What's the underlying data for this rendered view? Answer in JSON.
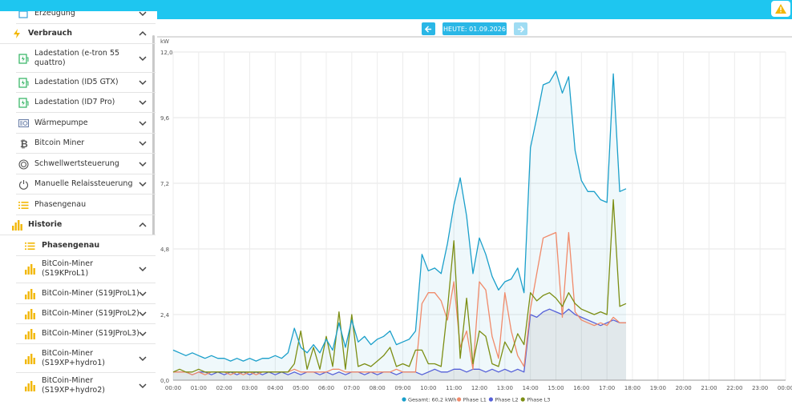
{
  "nav": {
    "date_label": "HEUTE: 01.09.2026",
    "prev_icon": "arrow-left-icon",
    "next_icon": "arrow-right-icon"
  },
  "sidebar": {
    "items": [
      {
        "label": "Erzeugung",
        "icon": "generator-icon",
        "bold": false,
        "indent": 1
      },
      {
        "label": "Verbrauch",
        "icon": "lightning-icon",
        "bold": true,
        "indent": 0
      },
      {
        "label": "Ladestation (e-tron 55\nquattro)",
        "icon": "ev-charger-icon",
        "bold": false,
        "indent": 1
      },
      {
        "label": "Ladestation (ID5 GTX)",
        "icon": "ev-charger-icon",
        "bold": false,
        "indent": 1
      },
      {
        "label": "Ladestation (ID7 Pro)",
        "icon": "ev-charger-icon",
        "bold": false,
        "indent": 1
      },
      {
        "label": "Wärmepumpe",
        "icon": "heatpump-icon",
        "bold": false,
        "indent": 1
      },
      {
        "label": "Bitcoin Miner",
        "icon": "bitcoin-icon",
        "bold": false,
        "indent": 1
      },
      {
        "label": "Schwellwertsteuerung",
        "icon": "threshold-icon",
        "bold": false,
        "indent": 1
      },
      {
        "label": "Manuelle Relaissteuerung",
        "icon": "power-icon",
        "bold": false,
        "indent": 1
      },
      {
        "label": "Phasengenau",
        "icon": "list-icon",
        "bold": false,
        "indent": 1
      },
      {
        "label": "Historie",
        "icon": "bar-chart-icon",
        "bold": true,
        "indent": 0
      },
      {
        "label": "Phasengenau",
        "icon": "list-icon",
        "bold": true,
        "indent": 2
      },
      {
        "label": "BitCoin-Miner\n(S19KProL1)",
        "icon": "bar-chart-icon",
        "bold": false,
        "indent": 2
      },
      {
        "label": "BitCoin-Miner (S19JProL1)",
        "icon": "bar-chart-icon",
        "bold": false,
        "indent": 2
      },
      {
        "label": "BitCoin-Miner (S19JProL2)",
        "icon": "bar-chart-icon",
        "bold": false,
        "indent": 2
      },
      {
        "label": "BitCoin-Miner (S19JProL3)",
        "icon": "bar-chart-icon",
        "bold": false,
        "indent": 2
      },
      {
        "label": "BitCoin-Miner\n(S19XP+hydro1)",
        "icon": "bar-chart-icon",
        "bold": false,
        "indent": 2
      },
      {
        "label": "BitCoin-Miner\n(S19XP+hydro2)",
        "icon": "bar-chart-icon",
        "bold": false,
        "indent": 2
      }
    ]
  },
  "colors": {
    "topbar": "#1ec6f0",
    "accent": "#2ab7e6",
    "gesamt": "#1a9fca",
    "l1": "#f08a6a",
    "l2": "#5560d8",
    "l3": "#7c8e13",
    "icon_yellow": "#f2b705",
    "icon_green": "#3db86b"
  },
  "chart_data": {
    "type": "line",
    "ylabel": "kW",
    "ylim": [
      0,
      12
    ],
    "yticks": [
      "0,0",
      "2,4",
      "4,8",
      "7,2",
      "9,6",
      "12,0"
    ],
    "xticks": [
      "00:00",
      "01:00",
      "02:00",
      "03:00",
      "04:00",
      "05:00",
      "06:00",
      "07:00",
      "08:00",
      "09:00",
      "10:00",
      "11:00",
      "12:00",
      "13:00",
      "14:00",
      "15:00",
      "16:00",
      "17:00",
      "18:00",
      "19:00",
      "20:00",
      "21:00",
      "22:00",
      "23:00",
      "00:00"
    ],
    "x_hours": [
      0,
      0.25,
      0.5,
      0.75,
      1,
      1.25,
      1.5,
      1.75,
      2,
      2.25,
      2.5,
      2.75,
      3,
      3.25,
      3.5,
      3.75,
      4,
      4.25,
      4.5,
      4.75,
      5,
      5.25,
      5.5,
      5.75,
      6,
      6.25,
      6.5,
      6.75,
      7,
      7.25,
      7.5,
      7.75,
      8,
      8.25,
      8.5,
      8.75,
      9,
      9.25,
      9.5,
      9.75,
      10,
      10.25,
      10.5,
      10.75,
      11,
      11.25,
      11.5,
      11.75,
      12,
      12.25,
      12.5,
      12.75,
      13,
      13.25,
      13.5,
      13.75,
      14,
      14.25,
      14.5,
      14.75,
      15,
      15.25,
      15.5,
      15.75,
      16,
      16.25,
      16.5,
      16.75,
      17,
      17.25,
      17.5,
      17.75
    ],
    "series": [
      {
        "name": "Gesamt: 60,2 kWh",
        "color": "#1a9fca",
        "values": [
          1.1,
          1.0,
          0.9,
          1.0,
          0.9,
          0.8,
          0.9,
          0.8,
          0.8,
          0.7,
          0.8,
          0.7,
          0.8,
          0.7,
          0.8,
          0.8,
          0.9,
          0.8,
          1.0,
          1.9,
          1.2,
          1.0,
          1.3,
          1.0,
          1.5,
          1.1,
          2.1,
          1.2,
          2.2,
          1.4,
          1.6,
          1.3,
          1.5,
          1.6,
          1.8,
          1.3,
          1.4,
          1.5,
          1.8,
          4.6,
          4.0,
          4.1,
          3.9,
          5.0,
          6.4,
          7.4,
          6.0,
          3.9,
          5.2,
          4.6,
          3.8,
          3.3,
          3.6,
          3.7,
          4.1,
          3.2,
          8.5,
          9.6,
          10.8,
          10.9,
          11.3,
          10.5,
          11.1,
          8.4,
          7.3,
          6.9,
          6.9,
          6.6,
          6.5,
          11.2,
          6.9,
          7.0
        ]
      },
      {
        "name": "Phase L1",
        "color": "#f08a6a",
        "values": [
          0.3,
          0.3,
          0.3,
          0.2,
          0.3,
          0.2,
          0.3,
          0.3,
          0.3,
          0.2,
          0.3,
          0.2,
          0.3,
          0.2,
          0.3,
          0.3,
          0.3,
          0.3,
          0.3,
          0.4,
          0.3,
          0.3,
          0.3,
          0.3,
          0.3,
          0.4,
          0.4,
          0.3,
          0.3,
          0.3,
          0.3,
          0.3,
          0.3,
          0.3,
          0.3,
          0.4,
          0.3,
          0.3,
          0.3,
          2.8,
          3.2,
          3.2,
          2.9,
          2.2,
          3.6,
          1.2,
          1.8,
          0.4,
          3.6,
          3.3,
          1.6,
          0.8,
          3.2,
          1.8,
          0.9,
          0.5,
          2.6,
          3.9,
          5.2,
          5.3,
          5.4,
          2.3,
          5.4,
          2.5,
          2.2,
          2.1,
          2.0,
          2.1,
          2.0,
          2.3,
          2.1,
          2.1
        ]
      },
      {
        "name": "Phase L2",
        "color": "#5560d8",
        "values": [
          0.3,
          0.3,
          0.3,
          0.2,
          0.3,
          0.3,
          0.2,
          0.3,
          0.2,
          0.3,
          0.2,
          0.3,
          0.2,
          0.3,
          0.2,
          0.3,
          0.2,
          0.3,
          0.2,
          0.3,
          0.2,
          0.3,
          0.3,
          0.2,
          0.3,
          0.2,
          0.3,
          0.2,
          0.3,
          0.3,
          0.2,
          0.3,
          0.2,
          0.3,
          0.3,
          0.2,
          0.3,
          0.3,
          0.3,
          0.2,
          0.3,
          0.4,
          0.3,
          0.3,
          0.4,
          0.4,
          0.3,
          0.4,
          0.4,
          0.3,
          0.4,
          0.3,
          0.4,
          0.3,
          0.4,
          0.3,
          2.4,
          2.3,
          2.5,
          2.6,
          2.5,
          2.4,
          2.6,
          2.4,
          2.3,
          2.2,
          2.1,
          2.0,
          2.1,
          2.2,
          2.1,
          2.1
        ]
      },
      {
        "name": "Phase L3",
        "color": "#7c8e13",
        "values": [
          0.3,
          0.4,
          0.3,
          0.3,
          0.4,
          0.3,
          0.3,
          0.3,
          0.3,
          0.3,
          0.3,
          0.3,
          0.3,
          0.3,
          0.3,
          0.3,
          0.3,
          0.3,
          0.3,
          0.6,
          1.8,
          0.4,
          1.2,
          0.4,
          1.6,
          0.5,
          2.5,
          0.4,
          2.4,
          0.5,
          0.6,
          0.5,
          0.7,
          0.9,
          1.2,
          0.5,
          0.6,
          0.5,
          1.1,
          1.1,
          0.6,
          0.6,
          0.5,
          2.6,
          5.1,
          0.8,
          3.0,
          0.6,
          1.8,
          1.6,
          0.6,
          0.5,
          1.4,
          1.0,
          1.7,
          1.3,
          3.2,
          2.9,
          3.1,
          3.2,
          3.0,
          2.7,
          3.2,
          2.8,
          2.6,
          2.5,
          2.4,
          2.5,
          2.4,
          6.6,
          2.7,
          2.8
        ]
      }
    ]
  }
}
